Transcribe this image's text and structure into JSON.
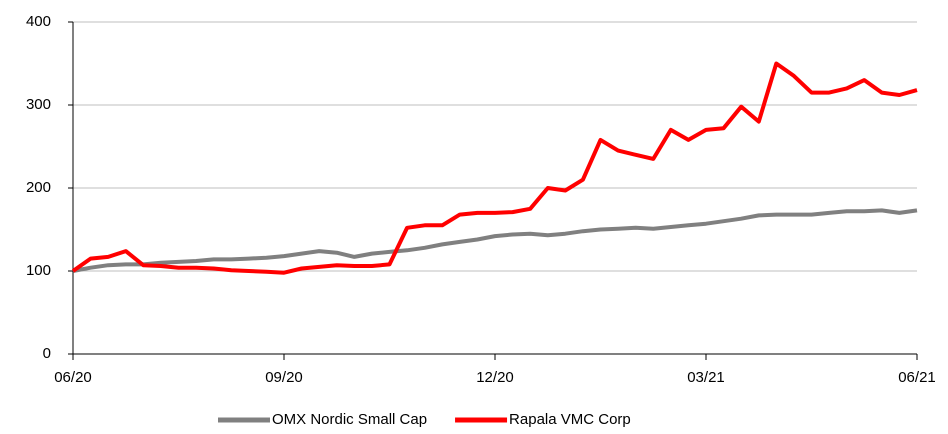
{
  "chart_data": {
    "type": "line",
    "categories": [
      "06/20",
      null,
      null,
      null,
      null,
      null,
      null,
      null,
      null,
      null,
      null,
      null,
      "09/20",
      null,
      null,
      null,
      null,
      null,
      null,
      null,
      null,
      null,
      null,
      null,
      "12/20",
      null,
      null,
      null,
      null,
      null,
      null,
      null,
      null,
      null,
      null,
      null,
      "03/21",
      null,
      null,
      null,
      null,
      null,
      null,
      null,
      null,
      null,
      null,
      null,
      "06/21"
    ],
    "series": [
      {
        "name": "OMX Nordic Small Cap",
        "color": "#808080",
        "values": [
          100,
          104,
          107,
          108,
          108,
          110,
          111,
          112,
          114,
          114,
          115,
          116,
          118,
          121,
          124,
          122,
          117,
          121,
          123,
          125,
          128,
          132,
          135,
          138,
          142,
          144,
          145,
          143,
          145,
          148,
          150,
          151,
          152,
          151,
          153,
          155,
          157,
          160,
          163,
          167,
          168,
          168,
          168,
          170,
          172,
          172,
          173,
          170,
          173
        ]
      },
      {
        "name": "Rapala VMC Corp",
        "color": "#ff0000",
        "values": [
          100,
          115,
          117,
          124,
          107,
          106,
          104,
          104,
          103,
          101,
          100,
          99,
          98,
          103,
          105,
          107,
          106,
          106,
          108,
          152,
          155,
          155,
          168,
          170,
          170,
          171,
          175,
          200,
          197,
          210,
          258,
          245,
          240,
          235,
          270,
          258,
          270,
          272,
          298,
          280,
          350,
          335,
          315,
          315,
          320,
          330,
          315,
          312,
          318
        ]
      }
    ],
    "ylim": [
      0,
      400
    ],
    "yticks": [
      0,
      100,
      200,
      300,
      400
    ],
    "grid": true,
    "legend": "bottom"
  }
}
